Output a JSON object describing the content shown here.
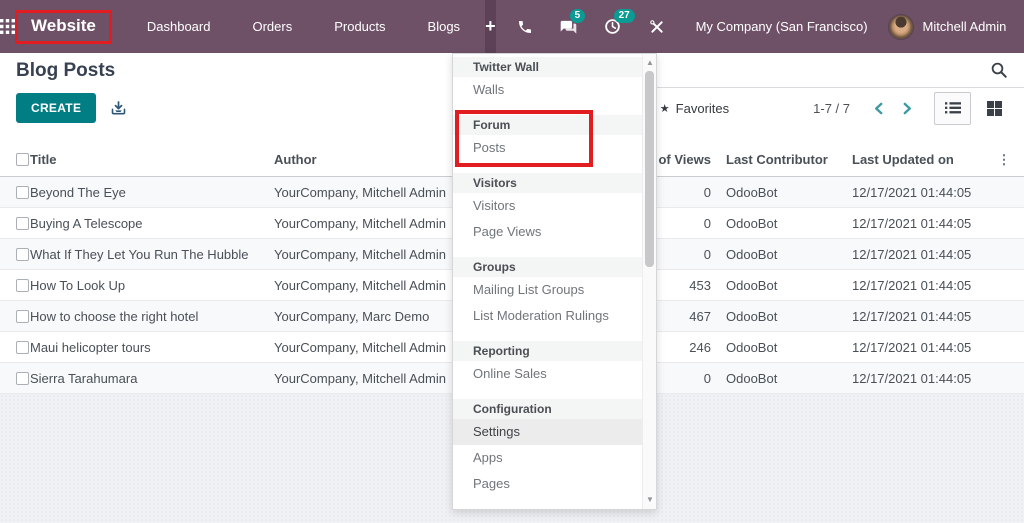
{
  "colors": {
    "navbar": "#6e5167",
    "primary_button": "#017e84",
    "highlight_red": "#e11d22",
    "badge_teal": "#0b9a94"
  },
  "navbar": {
    "app_name": "Website",
    "menu_items": [
      "Dashboard",
      "Orders",
      "Products",
      "Blogs"
    ],
    "plus_label": "+",
    "systray": {
      "messages_count": "5",
      "activities_count": "27"
    },
    "company": "My Company (San Francisco)",
    "user": "Mitchell Admin"
  },
  "control_panel": {
    "title": "Blog Posts",
    "create_label": "CREATE",
    "favorites_label": "Favorites",
    "pager": "1-7 / 7"
  },
  "table": {
    "headers": {
      "title": "Title",
      "author": "Author",
      "views": "No of Views",
      "contributor": "Last Contributor",
      "updated": "Last Updated on"
    },
    "rows": [
      {
        "title": "Beyond The Eye",
        "author": "YourCompany, Mitchell Admin",
        "views": "0",
        "contributor": "OdooBot",
        "updated": "12/17/2021 01:44:05"
      },
      {
        "title": "Buying A Telescope",
        "author": "YourCompany, Mitchell Admin",
        "views": "0",
        "contributor": "OdooBot",
        "updated": "12/17/2021 01:44:05"
      },
      {
        "title": "What If They Let You Run The Hubble",
        "author": "YourCompany, Mitchell Admin",
        "views": "0",
        "contributor": "OdooBot",
        "updated": "12/17/2021 01:44:05"
      },
      {
        "title": "How To Look Up",
        "author": "YourCompany, Mitchell Admin",
        "views": "453",
        "contributor": "OdooBot",
        "updated": "12/17/2021 01:44:05"
      },
      {
        "title": "How to choose the right hotel",
        "author": "YourCompany, Marc Demo",
        "views": "467",
        "contributor": "OdooBot",
        "updated": "12/17/2021 01:44:05"
      },
      {
        "title": "Maui helicopter tours",
        "author": "YourCompany, Mitchell Admin",
        "views": "246",
        "contributor": "OdooBot",
        "updated": "12/17/2021 01:44:05"
      },
      {
        "title": "Sierra Tarahumara",
        "author": "YourCompany, Mitchell Admin",
        "views": "0",
        "contributor": "OdooBot",
        "updated": "12/17/2021 01:44:05"
      }
    ]
  },
  "dropdown": {
    "sections": [
      {
        "header": "Twitter Wall",
        "items": [
          {
            "label": "Walls"
          }
        ]
      },
      {
        "header": "Forum",
        "highlighted": true,
        "items": [
          {
            "label": "Posts"
          }
        ]
      },
      {
        "header": "Visitors",
        "items": [
          {
            "label": "Visitors"
          },
          {
            "label": "Page Views"
          }
        ]
      },
      {
        "header": "Groups",
        "items": [
          {
            "label": "Mailing List Groups"
          },
          {
            "label": "List Moderation Rulings"
          }
        ]
      },
      {
        "header": "Reporting",
        "items": [
          {
            "label": "Online Sales"
          }
        ]
      },
      {
        "header": "Configuration",
        "items": [
          {
            "label": "Settings",
            "active": true
          },
          {
            "label": "Apps"
          },
          {
            "label": "Pages"
          }
        ]
      }
    ]
  }
}
